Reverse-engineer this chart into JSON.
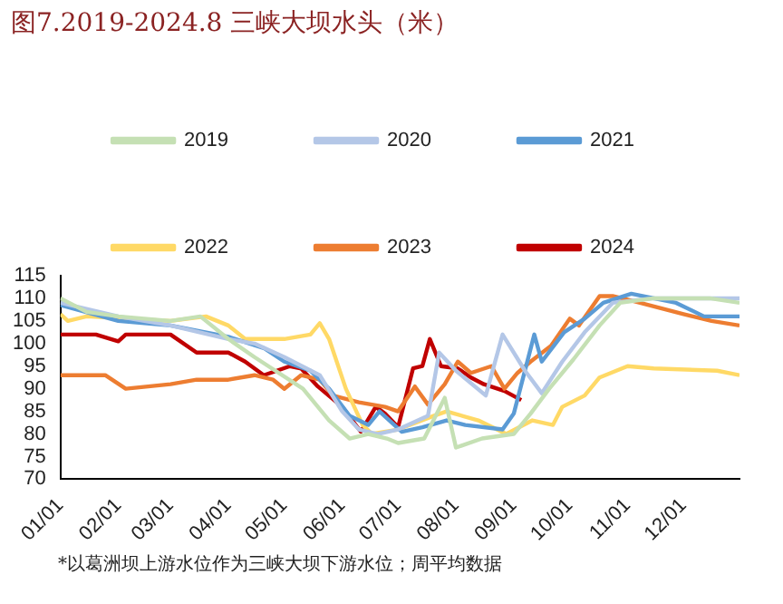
{
  "chart_data": {
    "type": "line",
    "title": "图7.2019-2024.8 三峡大坝水头（米）",
    "annotations": [
      "*以葛洲坝上游水位作为三峡大坝下游水位；周平均数据"
    ],
    "xlim": [
      "--01-01",
      "--12-31"
    ],
    "xticks": [
      {
        "value": "--01-01",
        "label": "01/01"
      },
      {
        "value": "--02-01",
        "label": "02/01"
      },
      {
        "value": "--03-01",
        "label": "03/01"
      },
      {
        "value": "--04-01",
        "label": "04/01"
      },
      {
        "value": "--05-01",
        "label": "05/01"
      },
      {
        "value": "--06-01",
        "label": "06/01"
      },
      {
        "value": "--07-01",
        "label": "07/01"
      },
      {
        "value": "--08-01",
        "label": "08/01"
      },
      {
        "value": "--09-01",
        "label": "09/01"
      },
      {
        "value": "--10-01",
        "label": "10/01"
      },
      {
        "value": "--11-01",
        "label": "11/01"
      },
      {
        "value": "--12-01",
        "label": "12/01"
      }
    ],
    "ylim": [
      70,
      115
    ],
    "yticks": [
      70,
      75,
      80,
      85,
      90,
      95,
      100,
      105,
      110,
      115
    ],
    "grid": false,
    "legend": "top",
    "marker": "none",
    "line_style": "solid",
    "series": [
      {
        "name": "2019",
        "color": "#c5e0b4",
        "x": [
          "--01-01",
          "--01-15",
          "--02-01",
          "--03-01",
          "--03-17",
          "--04-01",
          "--04-15",
          "--05-11",
          "--05-25",
          "--06-05",
          "--06-15",
          "--06-25",
          "--07-01",
          "--07-15",
          "--07-26",
          "--08-01",
          "--08-15",
          "--09-01",
          "--09-10",
          "--09-20",
          "--10-03",
          "--10-17",
          "--10-28",
          "--11-15",
          "--12-15",
          "--12-31"
        ],
        "values": [
          110,
          107,
          106,
          105,
          106,
          101,
          97,
          90,
          83,
          79,
          80,
          79,
          78,
          79,
          88,
          77,
          79,
          80,
          84.5,
          90,
          96.5,
          104,
          109,
          110,
          110,
          109
        ]
      },
      {
        "name": "2020",
        "color": "#b4c7e7",
        "x": [
          "--01-01",
          "--02-01",
          "--03-01",
          "--04-01",
          "--04-15",
          "--05-01",
          "--05-20",
          "--06-01",
          "--06-10",
          "--06-20",
          "--07-01",
          "--07-17",
          "--07-23",
          "--08-01",
          "--08-17",
          "--08-26",
          "--09-07",
          "--09-16",
          "--09-27",
          "--10-09",
          "--10-24",
          "--11-15",
          "--12-31"
        ],
        "values": [
          109,
          106,
          104,
          101,
          100,
          97,
          93,
          85,
          81,
          80,
          81,
          84,
          98,
          94,
          88.5,
          102,
          94,
          89,
          96,
          102.5,
          109,
          110,
          110
        ]
      },
      {
        "name": "2021",
        "color": "#5b9bd5",
        "x": [
          "--01-01",
          "--02-01",
          "--03-01",
          "--04-01",
          "--04-20",
          "--05-01",
          "--05-15",
          "--05-25",
          "--06-05",
          "--06-15",
          "--06-21",
          "--07-03",
          "--07-14",
          "--07-27",
          "--08-06",
          "--08-26",
          "--09-01",
          "--09-12",
          "--09-16",
          "--09-28",
          "--10-09",
          "--10-19",
          "--11-03",
          "--11-27",
          "--12-12",
          "--12-31"
        ],
        "values": [
          108.5,
          105,
          104,
          101.5,
          99,
          96,
          94,
          90,
          84,
          82,
          85,
          80.5,
          81.5,
          83,
          82,
          81,
          84.5,
          102,
          96,
          102.5,
          105.5,
          109,
          111,
          109,
          106,
          106
        ]
      },
      {
        "name": "2022",
        "color": "#ffd966",
        "x": [
          "--01-01",
          "--01-05",
          "--01-15",
          "--03-01",
          "--03-20",
          "--04-01",
          "--04-10",
          "--05-01",
          "--05-15",
          "--05-20",
          "--05-25",
          "--06-03",
          "--06-12",
          "--06-17",
          "--07-01",
          "--07-20",
          "--07-27",
          "--08-13",
          "--08-28",
          "--09-11",
          "--09-22",
          "--09-27",
          "--10-09",
          "--10-17",
          "--11-01",
          "--11-15",
          "--12-19",
          "--12-31"
        ],
        "values": [
          106.5,
          105,
          106,
          105,
          106,
          104,
          101,
          101,
          102,
          104.5,
          101,
          90,
          82,
          80,
          81,
          84,
          85,
          83,
          80,
          83,
          82,
          86,
          88.5,
          92.5,
          95,
          94.5,
          94,
          93
        ]
      },
      {
        "name": "2023",
        "color": "#ed7d31",
        "x": [
          "--01-01",
          "--01-25",
          "--02-05",
          "--03-01",
          "--03-15",
          "--04-01",
          "--04-15",
          "--04-25",
          "--05-01",
          "--05-10",
          "--05-20",
          "--05-27",
          "--06-10",
          "--06-24",
          "--07-01",
          "--07-10",
          "--07-17",
          "--07-26",
          "--08-02",
          "--08-09",
          "--08-20",
          "--08-27",
          "--09-03",
          "--09-10",
          "--09-21",
          "--10-01",
          "--10-06",
          "--10-17",
          "--10-24",
          "--11-03",
          "--11-17",
          "--12-01",
          "--12-16",
          "--12-31"
        ],
        "values": [
          93,
          93,
          90,
          91,
          92,
          92,
          93,
          92,
          90,
          93,
          92,
          88.5,
          87,
          86,
          85,
          90.5,
          86.5,
          91,
          96,
          93.5,
          95,
          90,
          93.5,
          96,
          99.5,
          105.5,
          104,
          110.5,
          110.5,
          109.5,
          108,
          106.5,
          105,
          104
        ]
      },
      {
        "name": "2024",
        "color": "#c00000",
        "x": [
          "--01-01",
          "--01-20",
          "--02-01",
          "--02-05",
          "--03-01",
          "--03-15",
          "--04-01",
          "--04-10",
          "--04-20",
          "--05-04",
          "--05-10",
          "--05-19",
          "--06-01",
          "--06-11",
          "--06-19",
          "--06-24",
          "--07-01",
          "--07-09",
          "--07-14",
          "--07-18",
          "--07-24",
          "--08-02",
          "--08-09",
          "--08-16",
          "--08-27",
          "--09-05"
        ],
        "values": [
          102,
          102,
          100.5,
          102,
          102,
          98,
          98,
          96,
          93,
          95,
          94.5,
          90.5,
          86,
          80.5,
          86,
          84.5,
          81.5,
          94.5,
          95,
          101,
          95,
          94.5,
          92.5,
          91,
          89.5,
          87.5
        ]
      }
    ]
  }
}
